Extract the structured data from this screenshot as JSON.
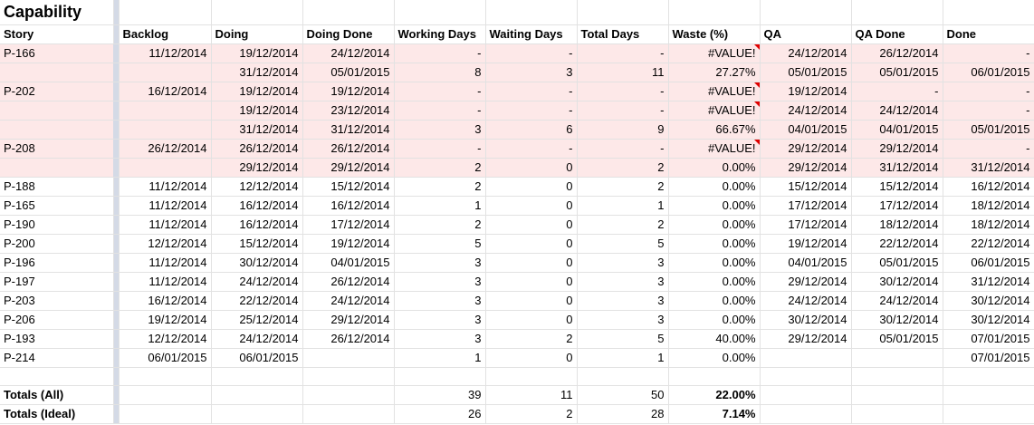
{
  "title": "Capability",
  "headers": [
    "Story",
    "Backlog",
    "Doing",
    "Doing Done",
    "Working Days",
    "Waiting Days",
    "Total Days",
    "Waste (%)",
    "QA",
    "QA Done",
    "Done"
  ],
  "rows": [
    {
      "pink": true,
      "cells": [
        "P-166",
        "11/12/2014",
        "19/12/2014",
        "24/12/2014",
        "-",
        "-",
        "-",
        "#VALUE!",
        "24/12/2014",
        "26/12/2014",
        "-"
      ],
      "error": true
    },
    {
      "pink": true,
      "cells": [
        "",
        "",
        "31/12/2014",
        "05/01/2015",
        "8",
        "3",
        "11",
        "27.27%",
        "05/01/2015",
        "05/01/2015",
        "06/01/2015"
      ]
    },
    {
      "pink": true,
      "cells": [
        "P-202",
        "16/12/2014",
        "19/12/2014",
        "19/12/2014",
        "-",
        "-",
        "-",
        "#VALUE!",
        "19/12/2014",
        "-",
        "-"
      ],
      "error": true
    },
    {
      "pink": true,
      "cells": [
        "",
        "",
        "19/12/2014",
        "23/12/2014",
        "-",
        "-",
        "-",
        "#VALUE!",
        "24/12/2014",
        "24/12/2014",
        "-"
      ],
      "error": true
    },
    {
      "pink": true,
      "cells": [
        "",
        "",
        "31/12/2014",
        "31/12/2014",
        "3",
        "6",
        "9",
        "66.67%",
        "04/01/2015",
        "04/01/2015",
        "05/01/2015"
      ]
    },
    {
      "pink": true,
      "cells": [
        "P-208",
        "26/12/2014",
        "26/12/2014",
        "26/12/2014",
        "-",
        "-",
        "-",
        "#VALUE!",
        "29/12/2014",
        "29/12/2014",
        "-"
      ],
      "error": true
    },
    {
      "pink": true,
      "cells": [
        "",
        "",
        "29/12/2014",
        "29/12/2014",
        "2",
        "0",
        "2",
        "0.00%",
        "29/12/2014",
        "31/12/2014",
        "31/12/2014"
      ]
    },
    {
      "pink": false,
      "cells": [
        "P-188",
        "11/12/2014",
        "12/12/2014",
        "15/12/2014",
        "2",
        "0",
        "2",
        "0.00%",
        "15/12/2014",
        "15/12/2014",
        "16/12/2014"
      ]
    },
    {
      "pink": false,
      "cells": [
        "P-165",
        "11/12/2014",
        "16/12/2014",
        "16/12/2014",
        "1",
        "0",
        "1",
        "0.00%",
        "17/12/2014",
        "17/12/2014",
        "18/12/2014"
      ]
    },
    {
      "pink": false,
      "cells": [
        "P-190",
        "11/12/2014",
        "16/12/2014",
        "17/12/2014",
        "2",
        "0",
        "2",
        "0.00%",
        "17/12/2014",
        "18/12/2014",
        "18/12/2014"
      ]
    },
    {
      "pink": false,
      "cells": [
        "P-200",
        "12/12/2014",
        "15/12/2014",
        "19/12/2014",
        "5",
        "0",
        "5",
        "0.00%",
        "19/12/2014",
        "22/12/2014",
        "22/12/2014"
      ]
    },
    {
      "pink": false,
      "cells": [
        "P-196",
        "11/12/2014",
        "30/12/2014",
        "04/01/2015",
        "3",
        "0",
        "3",
        "0.00%",
        "04/01/2015",
        "05/01/2015",
        "06/01/2015"
      ]
    },
    {
      "pink": false,
      "cells": [
        "P-197",
        "11/12/2014",
        "24/12/2014",
        "26/12/2014",
        "3",
        "0",
        "3",
        "0.00%",
        "29/12/2014",
        "30/12/2014",
        "31/12/2014"
      ]
    },
    {
      "pink": false,
      "cells": [
        "P-203",
        "16/12/2014",
        "22/12/2014",
        "24/12/2014",
        "3",
        "0",
        "3",
        "0.00%",
        "24/12/2014",
        "24/12/2014",
        "30/12/2014"
      ]
    },
    {
      "pink": false,
      "cells": [
        "P-206",
        "19/12/2014",
        "25/12/2014",
        "29/12/2014",
        "3",
        "0",
        "3",
        "0.00%",
        "30/12/2014",
        "30/12/2014",
        "30/12/2014"
      ]
    },
    {
      "pink": false,
      "cells": [
        "P-193",
        "12/12/2014",
        "24/12/2014",
        "26/12/2014",
        "3",
        "2",
        "5",
        "40.00%",
        "29/12/2014",
        "05/01/2015",
        "07/01/2015"
      ]
    },
    {
      "pink": false,
      "cells": [
        "P-214",
        "06/01/2015",
        "06/01/2015",
        "",
        "1",
        "0",
        "1",
        "0.00%",
        "",
        "",
        "07/01/2015"
      ]
    },
    {
      "pink": false,
      "cells": [
        "",
        "",
        "",
        "",
        "",
        "",
        "",
        "",
        "",
        "",
        ""
      ]
    }
  ],
  "totals": [
    {
      "cells": [
        "Totals (All)",
        "",
        "",
        "",
        "39",
        "11",
        "50",
        "22.00%",
        "",
        "",
        ""
      ]
    },
    {
      "cells": [
        "Totals (Ideal)",
        "",
        "",
        "",
        "26",
        "2",
        "28",
        "7.14%",
        "",
        "",
        ""
      ]
    }
  ],
  "colors": {
    "pink_row": "#fde8e8",
    "freeze_bar": "#d4dae6",
    "error_marker": "#e00000"
  }
}
